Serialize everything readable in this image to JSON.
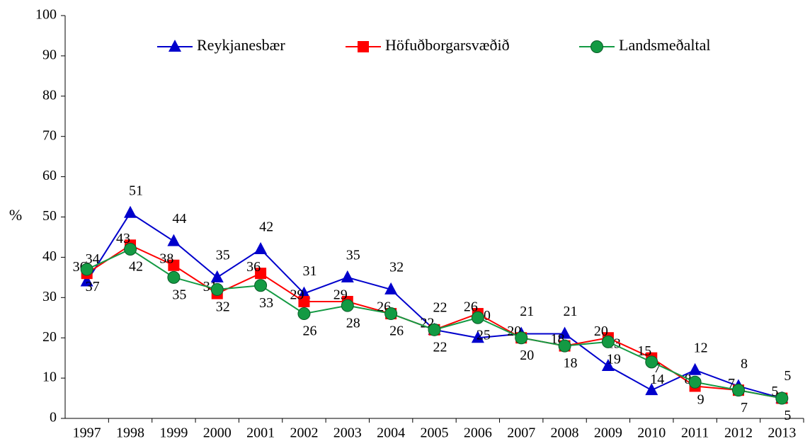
{
  "chart_data": {
    "type": "line",
    "y_label": "%",
    "categories": [
      "1997",
      "1998",
      "1999",
      "2000",
      "2001",
      "2002",
      "2003",
      "2004",
      "2005",
      "2006",
      "2007",
      "2008",
      "2009",
      "2010",
      "2011",
      "2012",
      "2013"
    ],
    "series": [
      {
        "name": "Reykjanesbær",
        "color": "#0000cc",
        "marker": "triangle",
        "values": [
          34,
          51,
          44,
          35,
          42,
          31,
          35,
          32,
          22,
          20,
          21,
          21,
          13,
          7,
          12,
          8,
          5
        ]
      },
      {
        "name": "Höfuðborgarsvæðið",
        "color": "#ff0000",
        "marker": "square",
        "values": [
          36,
          43,
          38,
          31,
          36,
          29,
          29,
          26,
          22,
          26,
          20,
          18,
          20,
          15,
          8,
          7,
          5
        ]
      },
      {
        "name": "Landsmeðaltal",
        "color": "#139a43",
        "marker": "circle",
        "values": [
          37,
          42,
          35,
          32,
          33,
          26,
          28,
          26,
          22,
          25,
          20,
          18,
          19,
          14,
          9,
          7,
          5
        ]
      }
    ],
    "ylim": [
      0,
      100
    ],
    "yticks": [
      0,
      10,
      20,
      30,
      40,
      50,
      60,
      70,
      80,
      90,
      100
    ],
    "grid": false,
    "legend": "top"
  }
}
